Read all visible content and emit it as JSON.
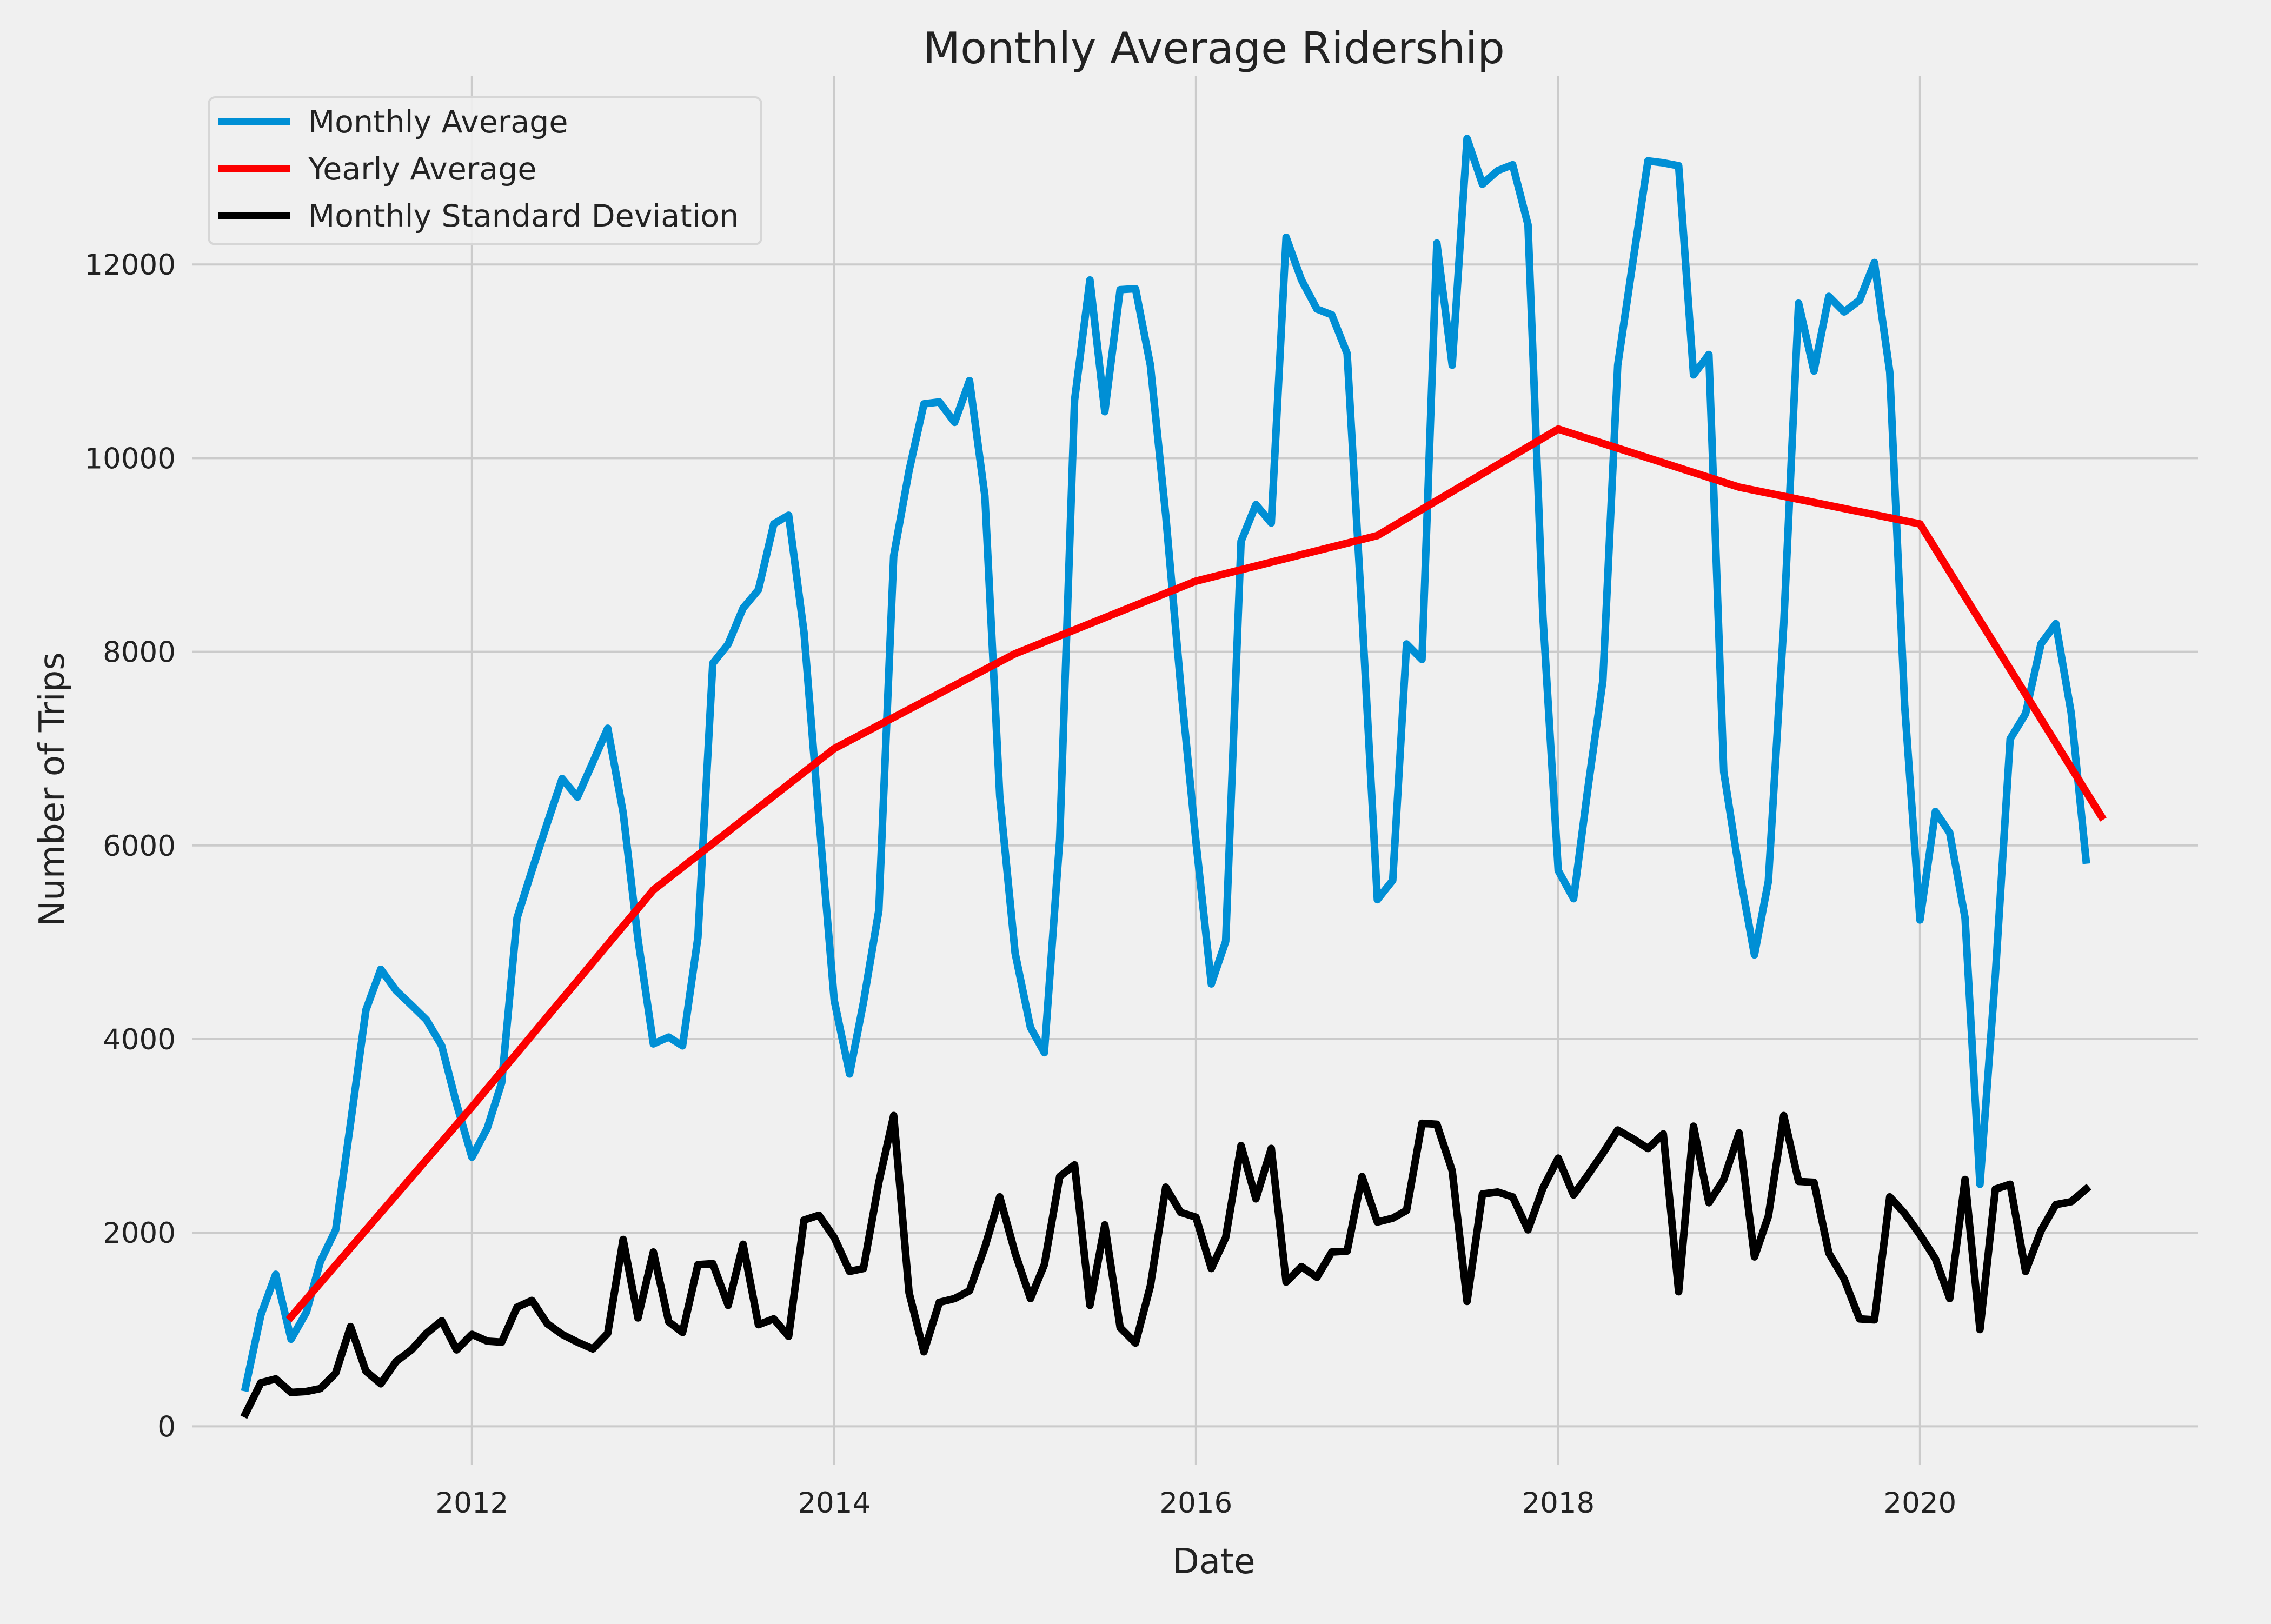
{
  "chart_data": {
    "type": "line",
    "title": "Monthly Average Ridership",
    "xlabel": "Date",
    "ylabel": "Number of Trips",
    "xlim": [
      "2010-06-15",
      "2021-07-15"
    ],
    "ylim": [
      -400,
      13950
    ],
    "x_ticks": [
      "2012",
      "2014",
      "2016",
      "2018",
      "2020"
    ],
    "y_ticks": [
      "0",
      "2000",
      "4000",
      "6000",
      "8000",
      "10000",
      "12000"
    ],
    "grid": true,
    "legend_position": "top-left",
    "background_color": "#f0f0f0",
    "grid_color": "#cbcbcb",
    "series": [
      {
        "name": "Monthly Average",
        "color": "#008fd5",
        "points": [
          [
            "2010-10-01",
            400
          ],
          [
            "2010-11-01",
            1150
          ],
          [
            "2010-12-01",
            1570
          ],
          [
            "2011-01-01",
            900
          ],
          [
            "2011-02-01",
            1180
          ],
          [
            "2011-03-01",
            1700
          ],
          [
            "2011-04-01",
            2030
          ],
          [
            "2011-05-01",
            3130
          ],
          [
            "2011-06-01",
            4300
          ],
          [
            "2011-07-01",
            4720
          ],
          [
            "2011-08-01",
            4500
          ],
          [
            "2011-09-01",
            4350
          ],
          [
            "2011-10-01",
            4200
          ],
          [
            "2011-11-01",
            3930
          ],
          [
            "2011-12-01",
            3330
          ],
          [
            "2012-01-01",
            2780
          ],
          [
            "2012-02-01",
            3080
          ],
          [
            "2012-03-01",
            3550
          ],
          [
            "2012-04-01",
            5250
          ],
          [
            "2012-05-01",
            5740
          ],
          [
            "2012-06-01",
            6230
          ],
          [
            "2012-07-01",
            6690
          ],
          [
            "2012-08-01",
            6500
          ],
          [
            "2012-09-01",
            6860
          ],
          [
            "2012-10-01",
            7210
          ],
          [
            "2012-11-01",
            6340
          ],
          [
            "2012-12-01",
            5030
          ],
          [
            "2013-01-01",
            3950
          ],
          [
            "2013-02-01",
            4020
          ],
          [
            "2013-03-01",
            3930
          ],
          [
            "2013-04-01",
            5050
          ],
          [
            "2013-05-01",
            7880
          ],
          [
            "2013-06-01",
            8080
          ],
          [
            "2013-07-01",
            8450
          ],
          [
            "2013-08-01",
            8640
          ],
          [
            "2013-09-01",
            9320
          ],
          [
            "2013-10-01",
            9410
          ],
          [
            "2013-11-01",
            8200
          ],
          [
            "2013-12-01",
            6290
          ],
          [
            "2014-01-01",
            4400
          ],
          [
            "2014-02-01",
            3640
          ],
          [
            "2014-03-01",
            4380
          ],
          [
            "2014-04-01",
            5330
          ],
          [
            "2014-05-01",
            8990
          ],
          [
            "2014-06-01",
            9870
          ],
          [
            "2014-07-01",
            10560
          ],
          [
            "2014-08-01",
            10580
          ],
          [
            "2014-09-01",
            10370
          ],
          [
            "2014-10-01",
            10800
          ],
          [
            "2014-11-01",
            9610
          ],
          [
            "2014-12-01",
            6510
          ],
          [
            "2015-01-01",
            4890
          ],
          [
            "2015-02-01",
            4120
          ],
          [
            "2015-03-01",
            3860
          ],
          [
            "2015-04-01",
            6060
          ],
          [
            "2015-05-01",
            10600
          ],
          [
            "2015-06-01",
            11840
          ],
          [
            "2015-07-01",
            10480
          ],
          [
            "2015-08-01",
            11740
          ],
          [
            "2015-09-01",
            11750
          ],
          [
            "2015-10-01",
            10960
          ],
          [
            "2015-11-01",
            9410
          ],
          [
            "2015-12-01",
            7660
          ],
          [
            "2016-01-01",
            6040
          ],
          [
            "2016-02-01",
            4570
          ],
          [
            "2016-03-01",
            5010
          ],
          [
            "2016-04-01",
            9140
          ],
          [
            "2016-05-01",
            9520
          ],
          [
            "2016-06-01",
            9330
          ],
          [
            "2016-07-01",
            12280
          ],
          [
            "2016-08-01",
            11840
          ],
          [
            "2016-09-01",
            11540
          ],
          [
            "2016-10-01",
            11480
          ],
          [
            "2016-11-01",
            11080
          ],
          [
            "2016-12-01",
            8380
          ],
          [
            "2017-01-01",
            5440
          ],
          [
            "2017-02-01",
            5640
          ],
          [
            "2017-03-01",
            8080
          ],
          [
            "2017-04-01",
            7920
          ],
          [
            "2017-05-01",
            12220
          ],
          [
            "2017-06-01",
            10960
          ],
          [
            "2017-07-01",
            13300
          ],
          [
            "2017-08-01",
            12830
          ],
          [
            "2017-09-01",
            12970
          ],
          [
            "2017-10-01",
            13030
          ],
          [
            "2017-11-01",
            12410
          ],
          [
            "2017-12-01",
            8370
          ],
          [
            "2018-01-01",
            5740
          ],
          [
            "2018-02-01",
            5450
          ],
          [
            "2018-03-01",
            6560
          ],
          [
            "2018-04-01",
            7700
          ],
          [
            "2018-05-01",
            10960
          ],
          [
            "2018-06-01",
            12040
          ],
          [
            "2018-07-01",
            13070
          ],
          [
            "2018-08-01",
            13050
          ],
          [
            "2018-09-01",
            13020
          ],
          [
            "2018-10-01",
            10860
          ],
          [
            "2018-11-01",
            11070
          ],
          [
            "2018-12-01",
            6760
          ],
          [
            "2019-01-01",
            5740
          ],
          [
            "2019-02-01",
            4870
          ],
          [
            "2019-03-01",
            5630
          ],
          [
            "2019-04-01",
            8280
          ],
          [
            "2019-05-01",
            11600
          ],
          [
            "2019-06-01",
            10900
          ],
          [
            "2019-07-01",
            11670
          ],
          [
            "2019-08-01",
            11510
          ],
          [
            "2019-09-01",
            11630
          ],
          [
            "2019-10-01",
            12020
          ],
          [
            "2019-11-01",
            10890
          ],
          [
            "2019-12-01",
            7450
          ],
          [
            "2020-01-01",
            5230
          ],
          [
            "2020-02-01",
            6350
          ],
          [
            "2020-03-01",
            6130
          ],
          [
            "2020-04-01",
            5250
          ],
          [
            "2020-05-01",
            2500
          ],
          [
            "2020-06-01",
            4660
          ],
          [
            "2020-07-01",
            7100
          ],
          [
            "2020-08-01",
            7360
          ],
          [
            "2020-09-01",
            8080
          ],
          [
            "2020-10-01",
            8290
          ],
          [
            "2020-11-01",
            7370
          ],
          [
            "2020-12-01",
            5850
          ]
        ]
      },
      {
        "name": "Yearly Average",
        "color": "#fc0000",
        "points": [
          [
            "2011-01-01",
            1130
          ],
          [
            "2012-01-01",
            3300
          ],
          [
            "2013-01-01",
            5540
          ],
          [
            "2014-01-01",
            7000
          ],
          [
            "2015-01-01",
            7980
          ],
          [
            "2016-01-01",
            8730
          ],
          [
            "2017-01-01",
            9200
          ],
          [
            "2018-01-01",
            10300
          ],
          [
            "2019-01-01",
            9700
          ],
          [
            "2020-01-01",
            9320
          ],
          [
            "2021-01-01",
            6300
          ]
        ]
      },
      {
        "name": "Monthly Standard Deviation",
        "color": "#000000",
        "points": [
          [
            "2010-10-01",
            130
          ],
          [
            "2010-11-01",
            450
          ],
          [
            "2010-12-01",
            490
          ],
          [
            "2011-01-01",
            350
          ],
          [
            "2011-02-01",
            360
          ],
          [
            "2011-03-01",
            390
          ],
          [
            "2011-04-01",
            550
          ],
          [
            "2011-05-01",
            1030
          ],
          [
            "2011-06-01",
            570
          ],
          [
            "2011-07-01",
            440
          ],
          [
            "2011-08-01",
            670
          ],
          [
            "2011-09-01",
            790
          ],
          [
            "2011-10-01",
            960
          ],
          [
            "2011-11-01",
            1090
          ],
          [
            "2011-12-01",
            790
          ],
          [
            "2012-01-01",
            950
          ],
          [
            "2012-02-01",
            880
          ],
          [
            "2012-03-01",
            870
          ],
          [
            "2012-04-01",
            1230
          ],
          [
            "2012-05-01",
            1300
          ],
          [
            "2012-06-01",
            1060
          ],
          [
            "2012-07-01",
            950
          ],
          [
            "2012-08-01",
            870
          ],
          [
            "2012-09-01",
            800
          ],
          [
            "2012-10-01",
            960
          ],
          [
            "2012-11-01",
            1930
          ],
          [
            "2012-12-01",
            1120
          ],
          [
            "2013-01-01",
            1800
          ],
          [
            "2013-02-01",
            1080
          ],
          [
            "2013-03-01",
            970
          ],
          [
            "2013-04-01",
            1670
          ],
          [
            "2013-05-01",
            1680
          ],
          [
            "2013-06-01",
            1250
          ],
          [
            "2013-07-01",
            1880
          ],
          [
            "2013-08-01",
            1050
          ],
          [
            "2013-09-01",
            1110
          ],
          [
            "2013-10-01",
            930
          ],
          [
            "2013-11-01",
            2130
          ],
          [
            "2013-12-01",
            2180
          ],
          [
            "2014-01-01",
            1950
          ],
          [
            "2014-02-01",
            1600
          ],
          [
            "2014-03-01",
            1630
          ],
          [
            "2014-04-01",
            2520
          ],
          [
            "2014-05-01",
            3210
          ],
          [
            "2014-06-01",
            1380
          ],
          [
            "2014-07-01",
            770
          ],
          [
            "2014-08-01",
            1280
          ],
          [
            "2014-09-01",
            1320
          ],
          [
            "2014-10-01",
            1400
          ],
          [
            "2014-11-01",
            1850
          ],
          [
            "2014-12-01",
            2370
          ],
          [
            "2015-01-01",
            1790
          ],
          [
            "2015-02-01",
            1320
          ],
          [
            "2015-03-01",
            1670
          ],
          [
            "2015-04-01",
            2580
          ],
          [
            "2015-05-01",
            2700
          ],
          [
            "2015-06-01",
            1250
          ],
          [
            "2015-07-01",
            2080
          ],
          [
            "2015-08-01",
            1020
          ],
          [
            "2015-09-01",
            860
          ],
          [
            "2015-10-01",
            1450
          ],
          [
            "2015-11-01",
            2470
          ],
          [
            "2015-12-01",
            2210
          ],
          [
            "2016-01-01",
            2160
          ],
          [
            "2016-02-01",
            1630
          ],
          [
            "2016-03-01",
            1950
          ],
          [
            "2016-04-01",
            2900
          ],
          [
            "2016-05-01",
            2350
          ],
          [
            "2016-06-01",
            2870
          ],
          [
            "2016-07-01",
            1490
          ],
          [
            "2016-08-01",
            1650
          ],
          [
            "2016-09-01",
            1540
          ],
          [
            "2016-10-01",
            1800
          ],
          [
            "2016-11-01",
            1810
          ],
          [
            "2016-12-01",
            2580
          ],
          [
            "2017-01-01",
            2110
          ],
          [
            "2017-02-01",
            2150
          ],
          [
            "2017-03-01",
            2230
          ],
          [
            "2017-04-01",
            3130
          ],
          [
            "2017-05-01",
            3120
          ],
          [
            "2017-06-01",
            2640
          ],
          [
            "2017-07-01",
            1290
          ],
          [
            "2017-08-01",
            2400
          ],
          [
            "2017-09-01",
            2420
          ],
          [
            "2017-10-01",
            2370
          ],
          [
            "2017-11-01",
            2030
          ],
          [
            "2017-12-01",
            2460
          ],
          [
            "2018-01-01",
            2770
          ],
          [
            "2018-02-01",
            2390
          ],
          [
            "2018-03-01",
            2590
          ],
          [
            "2018-04-01",
            2820
          ],
          [
            "2018-05-01",
            3060
          ],
          [
            "2018-06-01",
            2970
          ],
          [
            "2018-07-01",
            2870
          ],
          [
            "2018-08-01",
            3020
          ],
          [
            "2018-09-01",
            1390
          ],
          [
            "2018-10-01",
            3100
          ],
          [
            "2018-11-01",
            2310
          ],
          [
            "2018-12-01",
            2550
          ],
          [
            "2019-01-01",
            3030
          ],
          [
            "2019-02-01",
            1750
          ],
          [
            "2019-03-01",
            2170
          ],
          [
            "2019-04-01",
            3210
          ],
          [
            "2019-05-01",
            2530
          ],
          [
            "2019-06-01",
            2520
          ],
          [
            "2019-07-01",
            1790
          ],
          [
            "2019-08-01",
            1520
          ],
          [
            "2019-09-01",
            1110
          ],
          [
            "2019-10-01",
            1100
          ],
          [
            "2019-11-01",
            2370
          ],
          [
            "2019-12-01",
            2200
          ],
          [
            "2020-01-01",
            1980
          ],
          [
            "2020-02-01",
            1730
          ],
          [
            "2020-03-01",
            1320
          ],
          [
            "2020-04-01",
            2550
          ],
          [
            "2020-05-01",
            1000
          ],
          [
            "2020-06-01",
            2450
          ],
          [
            "2020-07-01",
            2500
          ],
          [
            "2020-08-01",
            1600
          ],
          [
            "2020-09-01",
            2020
          ],
          [
            "2020-10-01",
            2290
          ],
          [
            "2020-11-01",
            2320
          ],
          [
            "2020-12-01",
            2450
          ]
        ]
      }
    ]
  }
}
